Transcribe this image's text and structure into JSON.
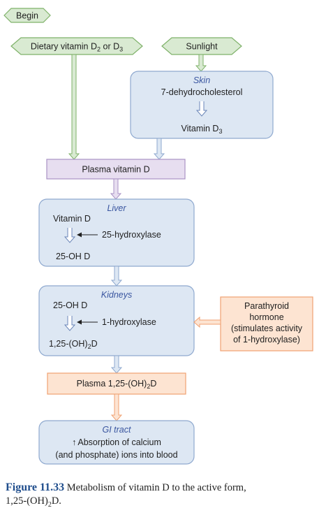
{
  "start": {
    "label": "Begin"
  },
  "inputs": {
    "dietary": {
      "label": "Dietary vitamin D",
      "sub1": "2",
      "mid": " or D",
      "sub2": "3"
    },
    "sunlight": {
      "label": "Sunlight"
    }
  },
  "skin": {
    "title": "Skin",
    "line1": "7-dehydrocholesterol",
    "line2": "Vitamin D",
    "line2_sub": "3"
  },
  "plasma_vitamin_d": {
    "label": "Plasma vitamin D"
  },
  "liver": {
    "title": "Liver",
    "input": "Vitamin D",
    "enzyme": "25-hydroxylase",
    "output": "25-OH D"
  },
  "kidneys": {
    "title": "Kidneys",
    "input": "25-OH D",
    "enzyme": "1-hydroxylase",
    "output_pre": "1,25-(OH)",
    "output_sub": "2",
    "output_post": "D"
  },
  "pth": {
    "line1": "Parathyroid",
    "line2": "hormone",
    "line3": "(stimulates activity",
    "line4": "of 1-hydroxylase)"
  },
  "plasma_active": {
    "pre": "Plasma 1,25-(OH)",
    "sub": "2",
    "post": "D"
  },
  "gi_tract": {
    "title": "GI tract",
    "line1": "Absorption of calcium",
    "line2": "(and phosphate) ions into blood",
    "arrow_symbol": "↑"
  },
  "caption": {
    "number": "Figure 11.33",
    "text": "Metabolism of vitamin D to the active form,",
    "formula_pre": "1,25-(OH)",
    "formula_sub": "2",
    "formula_post": "D."
  },
  "colors": {
    "start_fill": "#d9ead2",
    "start_stroke": "#7fb26a",
    "blue_fill": "#dde7f3",
    "blue_stroke": "#8fa9cf",
    "purple_fill": "#e7def0",
    "purple_stroke": "#a992c4",
    "orange_fill": "#fde4d2",
    "orange_stroke": "#f0a172",
    "title_blue": "#3a56a0",
    "caption_blue": "#1f4d8c"
  }
}
